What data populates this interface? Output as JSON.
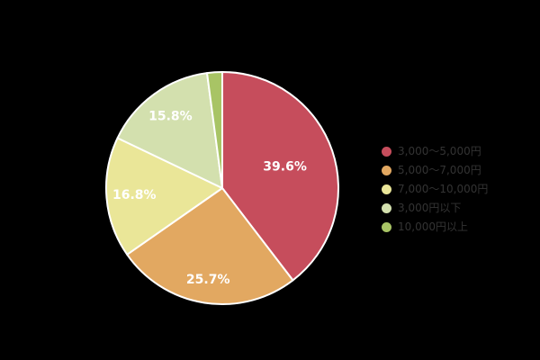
{
  "background_color": "#000000",
  "chart_data": {
    "type": "pie",
    "title": "",
    "labels": [
      "3,000～5,000円",
      "5,000～7,000円",
      "7,000～10,000円",
      "3,000円以下",
      "10,000円以上"
    ],
    "values": [
      39.6,
      25.7,
      16.8,
      15.8,
      2.1
    ],
    "percent_labels": [
      "39.6%",
      "25.7%",
      "16.8%",
      "15.8%",
      ""
    ],
    "colors": [
      "#C64D5C",
      "#E2A861",
      "#EAE698",
      "#D3E0AE",
      "#A8C465"
    ],
    "slice_border_color": "#FFFFFF",
    "slice_label_color": "#FFFFFF",
    "legend_position": "right",
    "legend_text_color": "#333333",
    "start_angle": "top",
    "direction": "clockwise",
    "unit": "%"
  }
}
